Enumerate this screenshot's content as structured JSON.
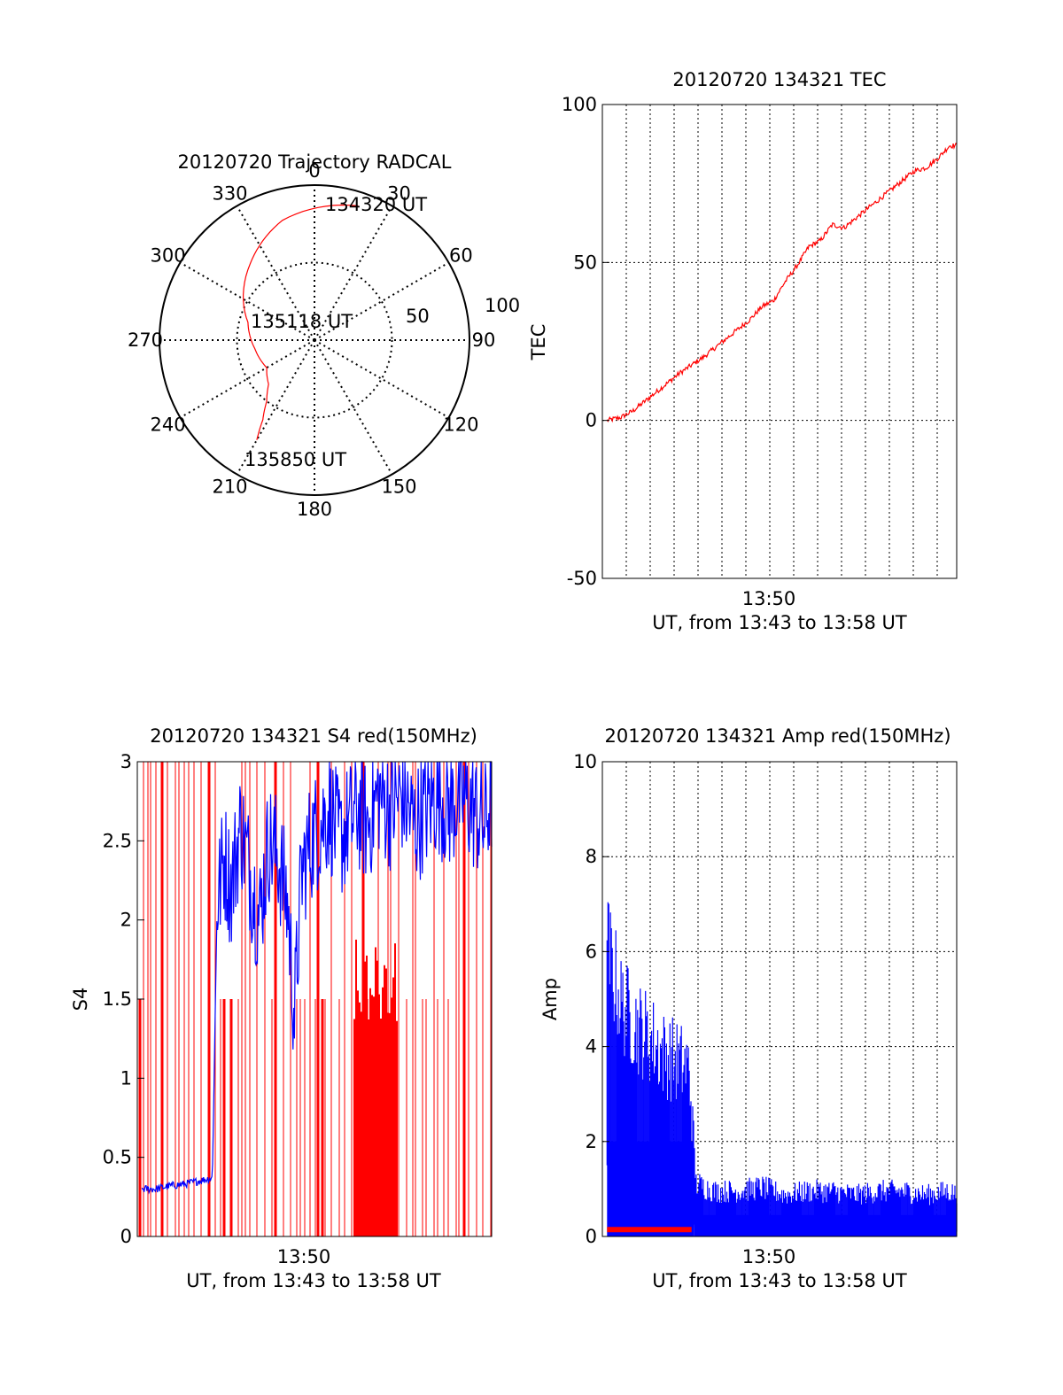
{
  "colors": {
    "red": "#ff0000",
    "blue": "#0000ff",
    "axis": "#000000",
    "grid": "#000000",
    "background": "#ffffff"
  },
  "chart_data": [
    {
      "id": "trajectory",
      "type": "polar",
      "title": "20120720 Trajectory RADCAL",
      "angle_labels": [
        "0",
        "30",
        "60",
        "90",
        "120",
        "150",
        "180",
        "210",
        "240",
        "270",
        "300",
        "330"
      ],
      "radial_labels": [
        "50",
        "100"
      ],
      "grid": true,
      "trajectory": {
        "color": "red",
        "points": [
          {
            "az": 18,
            "el": 8
          },
          {
            "az": 345,
            "el": 18
          },
          {
            "az": 320,
            "el": 32
          },
          {
            "az": 285,
            "el": 50
          },
          {
            "az": 262,
            "el": 55
          },
          {
            "az": 240,
            "el": 58
          },
          {
            "az": 226,
            "el": 53
          },
          {
            "az": 218,
            "el": 45
          },
          {
            "az": 213,
            "el": 35
          },
          {
            "az": 210,
            "el": 23
          }
        ]
      },
      "annotations": [
        {
          "text": "134320 UT",
          "at": "start"
        },
        {
          "text": "135118 UT",
          "at": "middle"
        },
        {
          "text": "135850 UT",
          "at": "end"
        }
      ]
    },
    {
      "id": "tec",
      "type": "line",
      "title": "20120720 134321 TEC",
      "ylabel": "TEC",
      "xlabel": "UT, from 13:43 to 13:58 UT",
      "x_tick_labels": [
        "13:50"
      ],
      "y_tick_labels": [
        "-50",
        "0",
        "50",
        "100"
      ],
      "ylim": [
        -50,
        100
      ],
      "xlim_minutes": [
        43.2,
        58.3
      ],
      "grid": true,
      "series": [
        {
          "color": "red",
          "x_minutes": [
            43.4,
            44.0,
            44.5,
            45.5,
            46.5,
            47.5,
            48.5,
            49.5,
            50.0,
            50.5,
            51.0,
            51.5,
            52.0,
            52.5,
            53.0,
            53.5,
            54.0,
            54.5,
            55.0,
            55.5,
            56.0,
            56.5,
            57.0,
            57.5,
            58.0,
            58.3
          ],
          "values": [
            0,
            1,
            3,
            9,
            15,
            20,
            26,
            32,
            36,
            38,
            44,
            49,
            55,
            57,
            62,
            61,
            64,
            67,
            70,
            73,
            76,
            79,
            80,
            83,
            87,
            87
          ]
        }
      ]
    },
    {
      "id": "s4",
      "type": "line",
      "title": "20120720 134321 S4 red(150MHz)",
      "ylabel": "S4",
      "xlabel": "UT, from 13:43 to 13:58 UT",
      "x_tick_labels": [
        "13:50"
      ],
      "y_tick_labels": [
        "0",
        "0.5",
        "1",
        "1.5",
        "2",
        "2.5",
        "3"
      ],
      "ylim": [
        0,
        3
      ],
      "xlim_minutes": [
        43.2,
        58.3
      ],
      "grid": false,
      "series": [
        {
          "color": "blue",
          "x_minutes": [
            43.4,
            44.0,
            44.6,
            45.2,
            45.8,
            46.4,
            46.6,
            46.9,
            47.2,
            47.6,
            48.0,
            48.4,
            48.8,
            49.2,
            49.6,
            49.9,
            50.2,
            50.6,
            51.0,
            51.4,
            51.8,
            52.2,
            52.6,
            53.0,
            53.5,
            54.0,
            54.5,
            55.0,
            55.5,
            56.0,
            56.5,
            57.0,
            57.5,
            58.0,
            58.3
          ],
          "values": [
            0.3,
            0.3,
            0.32,
            0.33,
            0.35,
            0.37,
            2.1,
            2.4,
            2.2,
            2.6,
            2.3,
            2.0,
            2.5,
            2.4,
            2.1,
            1.4,
            2.3,
            2.5,
            2.6,
            2.7,
            2.5,
            2.6,
            2.7,
            2.6,
            2.8,
            2.7,
            2.8,
            2.6,
            2.7,
            2.8,
            2.7,
            2.8,
            2.7,
            2.6,
            2.8
          ]
        },
        {
          "color": "red",
          "pattern": "dropouts",
          "values_high": 3,
          "values_low": 0
        }
      ]
    },
    {
      "id": "amp",
      "type": "line",
      "title": "20120720 134321 Amp red(150MHz)",
      "ylabel": "Amp",
      "xlabel": "UT, from 13:43 to 13:58 UT",
      "x_tick_labels": [
        "13:50"
      ],
      "y_tick_labels": [
        "0",
        "2",
        "4",
        "6",
        "8",
        "10"
      ],
      "ylim": [
        0,
        10
      ],
      "xlim_minutes": [
        43.2,
        58.3
      ],
      "grid": true,
      "series": [
        {
          "color": "blue",
          "x_minutes": [
            43.4,
            44.0,
            44.6,
            45.2,
            45.8,
            46.4,
            46.9,
            47.2,
            48.0,
            49.0,
            50.0,
            51.0,
            52.0,
            53.0,
            54.0,
            55.0,
            56.0,
            57.0,
            58.0,
            58.3
          ],
          "upper": [
            7.4,
            6.0,
            5.5,
            5.2,
            4.8,
            4.6,
            4.4,
            1.4,
            1.2,
            1.2,
            1.3,
            1.1,
            1.2,
            1.2,
            1.1,
            1.2,
            1.2,
            1.1,
            1.2,
            1.1
          ],
          "lower": [
            1.5,
            1.2,
            0.9,
            0.7,
            0.6,
            0.5,
            0.5,
            0.1,
            0.1,
            0.1,
            0.1,
            0.1,
            0.1,
            0.1,
            0.1,
            0.1,
            0.1,
            0.1,
            0.1,
            0.1
          ]
        },
        {
          "color": "red",
          "x_minutes": [
            43.4,
            47.0
          ],
          "values": [
            0.2,
            0.2
          ]
        }
      ]
    }
  ]
}
